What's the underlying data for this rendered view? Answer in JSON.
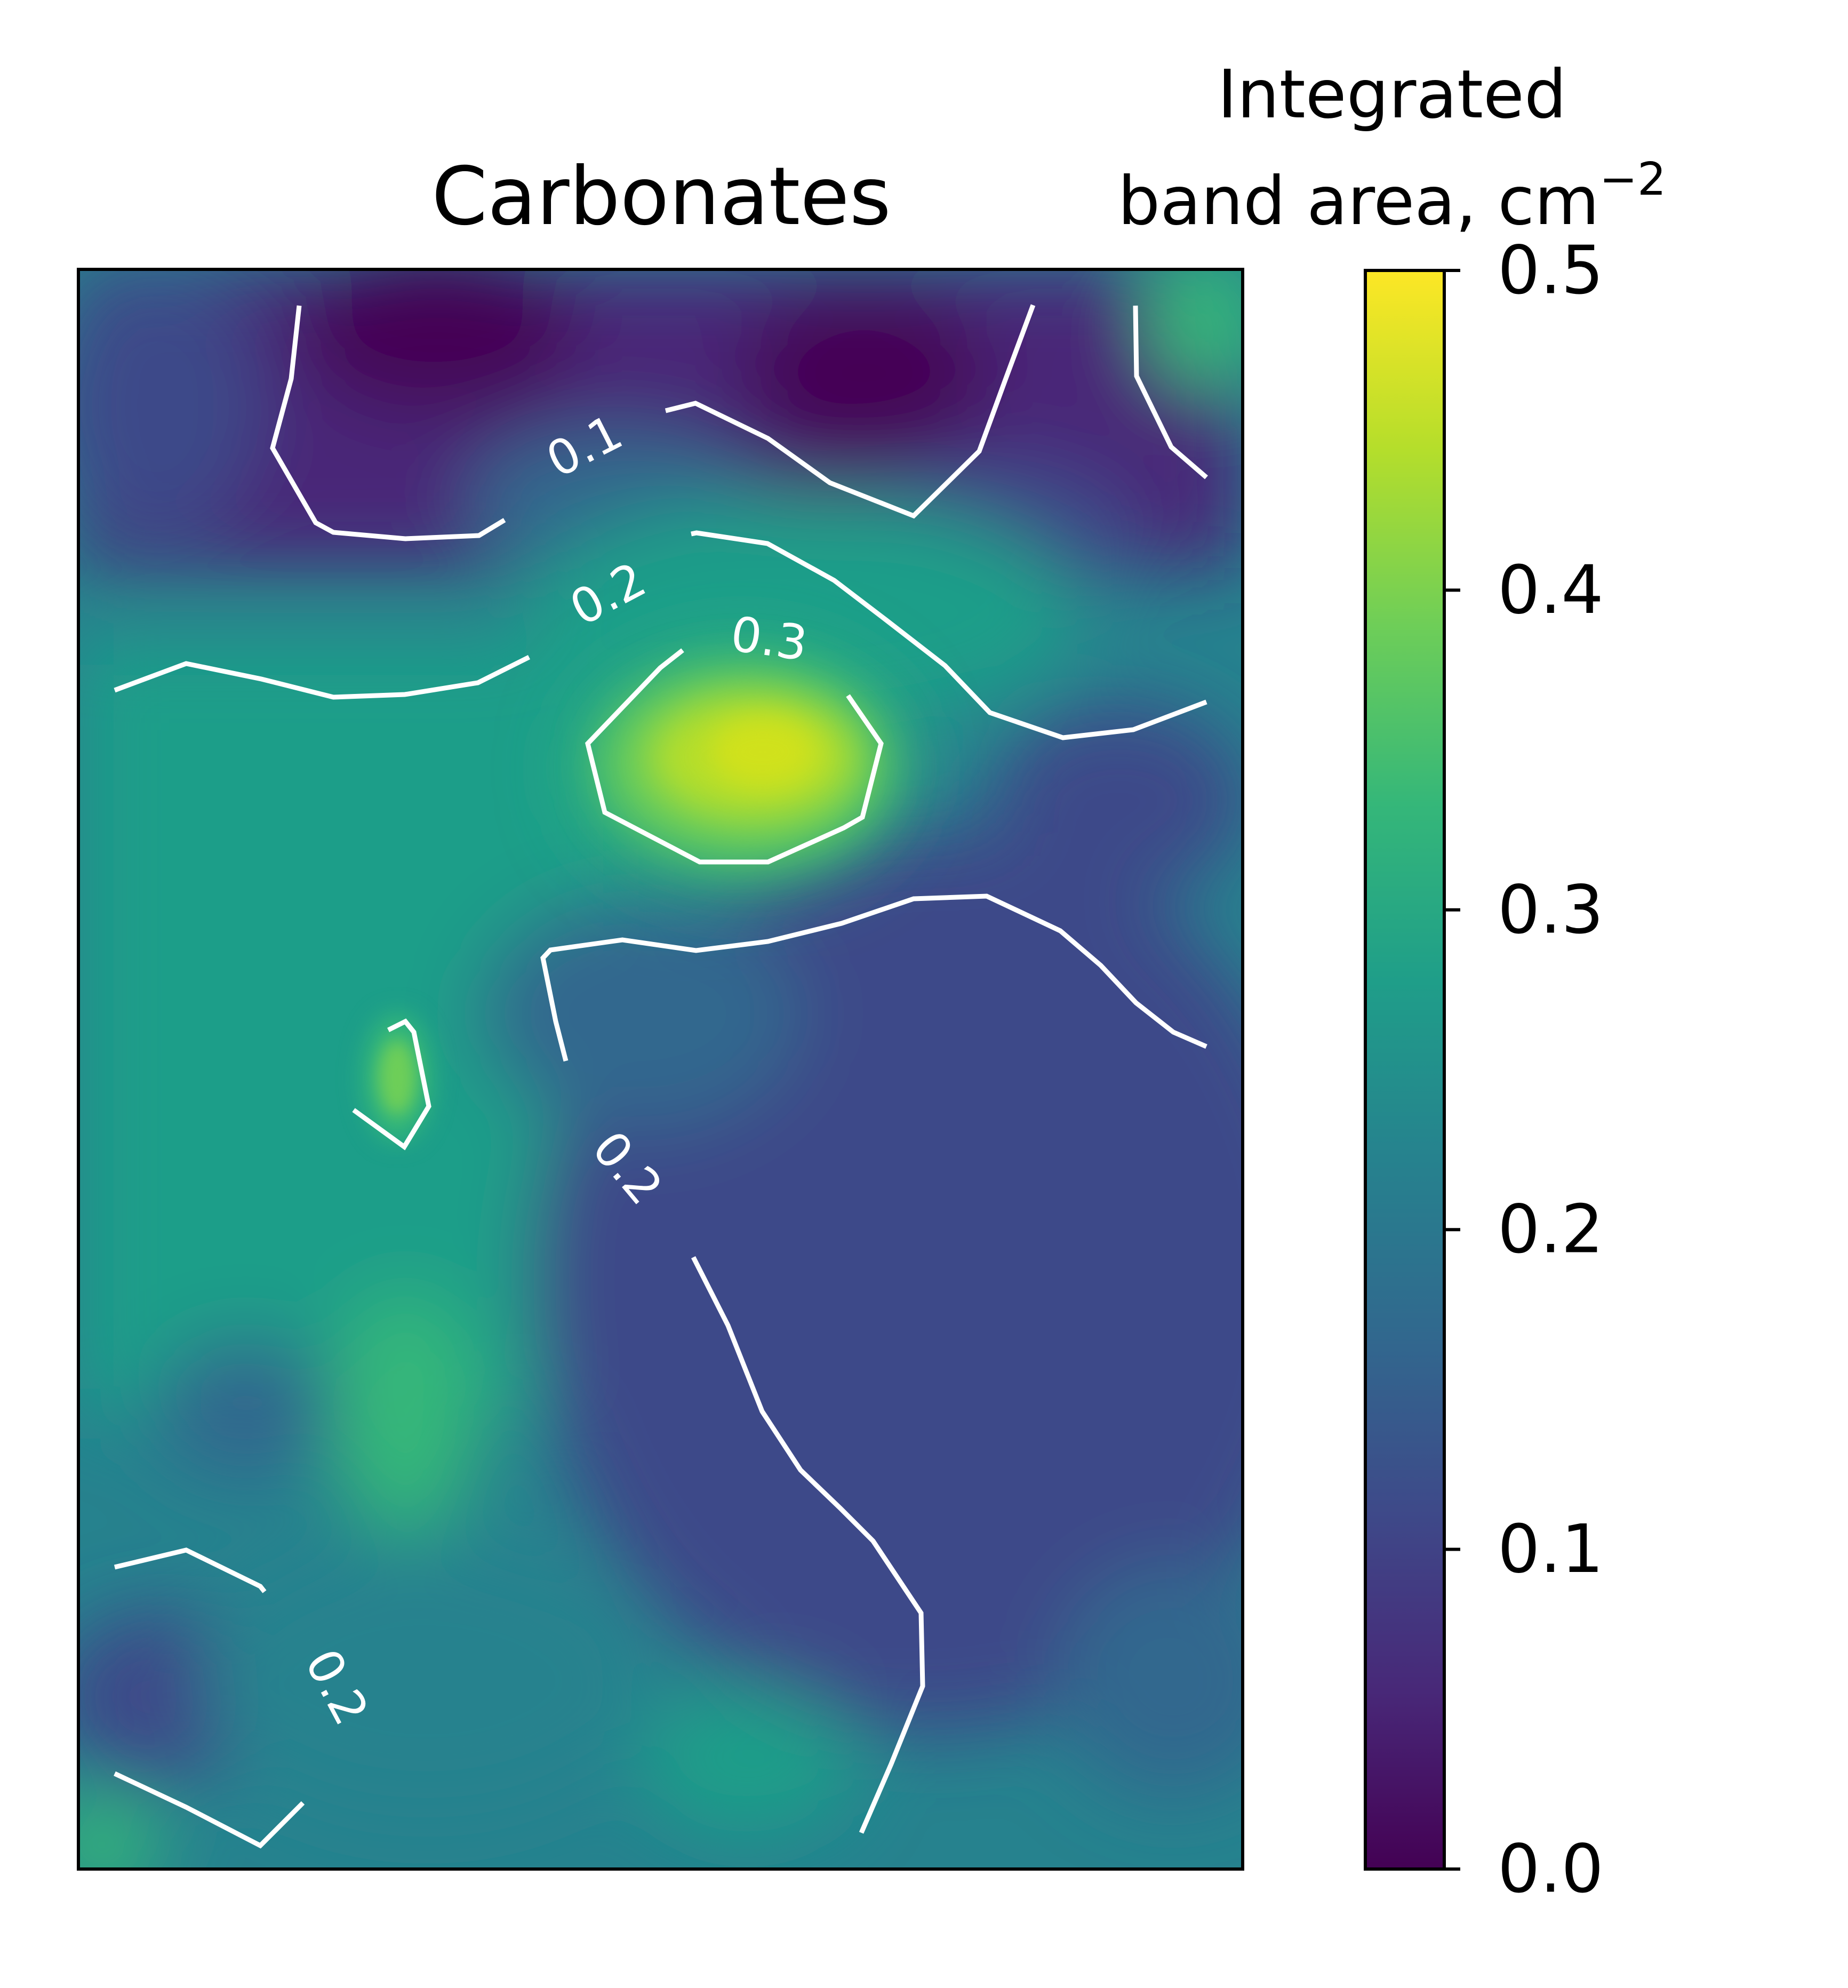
{
  "chart_data": {
    "type": "heatmap",
    "title": "Carbonates",
    "colorbar": {
      "label_line1": "Integrated",
      "label_line2": "band area, cm",
      "label_superscript": "−2",
      "range": [
        0.0,
        0.5
      ],
      "ticks": [
        "0.0",
        "0.1",
        "0.2",
        "0.3",
        "0.4",
        "0.5"
      ],
      "colormap": "viridis",
      "colormap_stops": [
        "#440154",
        "#482878",
        "#3e4989",
        "#31688e",
        "#26828e",
        "#1f9e89",
        "#35b779",
        "#6ece58",
        "#b5de2b",
        "#fde725"
      ]
    },
    "axes": {
      "x_ticks": [],
      "y_ticks": [],
      "grid": false
    },
    "contour_color": "#ffffff",
    "contour_levels": [
      0.1,
      0.2,
      0.3
    ],
    "contour_labels": [
      "0.1",
      "0.2",
      "0.3",
      "0.2",
      "0.2"
    ]
  }
}
